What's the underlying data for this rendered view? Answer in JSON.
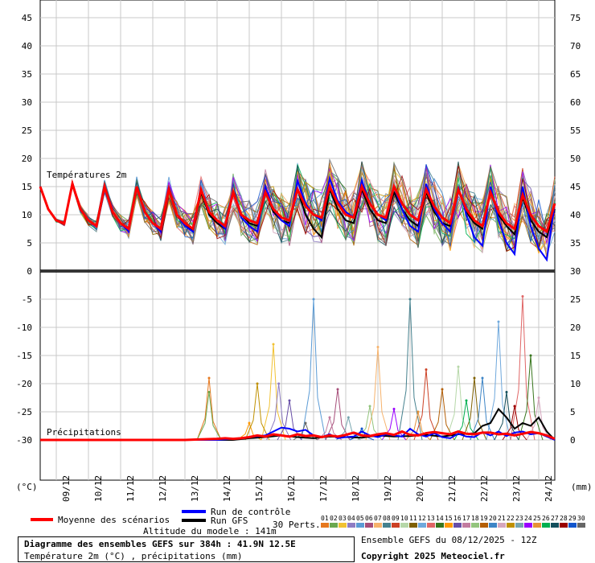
{
  "chart_data": {
    "type": "line",
    "top_panel": {
      "label": "Températures 2m",
      "left_ticks": [
        "45",
        "40",
        "35",
        "30",
        "25",
        "20",
        "15",
        "10",
        "5",
        "0"
      ],
      "right_ticks": [
        "75",
        "70",
        "65",
        "60",
        "55",
        "50",
        "45",
        "40",
        "35",
        "30"
      ],
      "ylim": [
        0,
        47.5
      ],
      "series": [
        {
          "name": "Moyenne des scénarios",
          "x": [
            0,
            6,
            12,
            18,
            24,
            30,
            36,
            42,
            48,
            54,
            60,
            66,
            72,
            78,
            84,
            90,
            96,
            102,
            108,
            114,
            120,
            126,
            132,
            138,
            144,
            150,
            156,
            162,
            168,
            174,
            180,
            186,
            192,
            198,
            204,
            210,
            216,
            222,
            228,
            234,
            240,
            246,
            252,
            258,
            264,
            270,
            276,
            282,
            288,
            294,
            300,
            306,
            312,
            318,
            324,
            330,
            336,
            342,
            348,
            354,
            360,
            366,
            372,
            378,
            384
          ],
          "values": [
            15,
            11,
            9,
            8.5,
            15.5,
            11,
            9,
            8,
            15,
            10.5,
            8.5,
            7.5,
            15,
            10.5,
            8.5,
            7.5,
            14.5,
            10,
            8.5,
            7.5,
            14.5,
            10.5,
            9,
            8,
            14,
            10,
            9,
            8.5,
            14,
            11,
            9.5,
            9,
            14.5,
            11.5,
            10,
            9.5,
            15,
            12,
            10,
            9.5,
            15,
            12,
            10,
            9.5,
            15,
            12,
            10,
            9,
            14.5,
            11.5,
            9.5,
            8.5,
            14.5,
            11,
            9,
            8,
            14,
            10.5,
            8.5,
            7.5,
            13.5,
            10,
            8,
            7,
            12
          ]
        },
        {
          "name": "Run de contrôle",
          "x": [
            0,
            6,
            12,
            18,
            24,
            30,
            36,
            42,
            48,
            54,
            60,
            66,
            72,
            78,
            84,
            90,
            96,
            102,
            108,
            114,
            120,
            126,
            132,
            138,
            144,
            150,
            156,
            162,
            168,
            174,
            180,
            186,
            192,
            198,
            204,
            210,
            216,
            222,
            228,
            234,
            240,
            246,
            252,
            258,
            264,
            270,
            276,
            282,
            288,
            294,
            300,
            306,
            312,
            318,
            324,
            330,
            336,
            342,
            348,
            354,
            360,
            366,
            372,
            378,
            384
          ],
          "values": [
            15,
            11,
            9,
            8.5,
            15.5,
            11,
            9,
            8,
            15,
            10.5,
            8.5,
            7,
            15,
            10.5,
            8.5,
            7,
            15,
            10,
            8,
            7,
            14.5,
            10.5,
            9,
            7.5,
            14,
            9.5,
            8,
            7,
            15,
            11,
            9,
            8,
            16,
            12,
            10,
            9,
            16.5,
            12.5,
            10.5,
            9.5,
            16,
            12,
            10,
            9,
            15,
            11,
            8,
            7,
            15.5,
            11,
            8.5,
            7,
            15,
            10,
            6,
            4.5,
            15,
            9,
            5,
            3,
            15,
            8,
            4,
            2,
            12
          ]
        },
        {
          "name": "Run GFS",
          "x": [
            0,
            6,
            12,
            18,
            24,
            30,
            36,
            42,
            48,
            54,
            60,
            66,
            72,
            78,
            84,
            90,
            96,
            102,
            108,
            114,
            120,
            126,
            132,
            138,
            144,
            150,
            156,
            162,
            168,
            174,
            180,
            186,
            192,
            198,
            204,
            210,
            216,
            222,
            228,
            234,
            240,
            246,
            252,
            258,
            264,
            270,
            276,
            282,
            288,
            294,
            300,
            306,
            312,
            318,
            324,
            330,
            336,
            342,
            348,
            354,
            360,
            366,
            372,
            378,
            384
          ],
          "values": [
            15,
            11,
            9,
            8.5,
            15.5,
            11,
            9,
            8,
            15,
            10.5,
            8.5,
            7.5,
            15,
            10.5,
            8.5,
            7.5,
            14.5,
            10,
            8.5,
            7,
            14,
            10,
            8.5,
            7.5,
            14,
            10,
            8.5,
            8,
            14,
            10.5,
            9,
            8.5,
            14.5,
            10,
            7.5,
            6,
            14.5,
            11,
            9,
            8.5,
            14.5,
            11,
            9,
            8.5,
            14,
            11,
            9,
            8,
            14,
            10.5,
            8.5,
            8,
            14.5,
            10.5,
            8.5,
            7.5,
            14,
            10,
            8,
            6.5,
            13,
            9,
            7,
            6,
            11
          ]
        }
      ]
    },
    "bottom_panel": {
      "label": "Précipitations",
      "left_ticks": [
        "0",
        "-5",
        "-10",
        "-15",
        "-20",
        "-25",
        "-30"
      ],
      "right_ticks": [
        "30",
        "25",
        "20",
        "15",
        "10",
        "5",
        "0"
      ],
      "ylim_mm": [
        0,
        30
      ],
      "series": [
        {
          "name": "Moyenne des scénarios",
          "x": [
            0,
            12,
            24,
            36,
            48,
            60,
            72,
            84,
            96,
            108,
            120,
            132,
            138,
            144,
            150,
            156,
            162,
            168,
            174,
            180,
            186,
            192,
            198,
            204,
            210,
            216,
            222,
            228,
            234,
            240,
            246,
            252,
            258,
            264,
            270,
            276,
            282,
            288,
            294,
            300,
            306,
            312,
            318,
            324,
            330,
            336,
            342,
            348,
            354,
            360,
            366,
            372,
            378,
            384
          ],
          "values": [
            0,
            0,
            0,
            0,
            0,
            0,
            0,
            0,
            0,
            0,
            0.1,
            0.2,
            0.3,
            0.2,
            0.3,
            0.5,
            0.8,
            0.6,
            1,
            0.8,
            0.6,
            1,
            0.7,
            0.8,
            0.5,
            0.8,
            0.6,
            0.9,
            1.3,
            0.8,
            0.7,
            1,
            1.2,
            0.9,
            1.5,
            0.9,
            0.8,
            1.2,
            1.4,
            1.2,
            1,
            1.5,
            1.1,
            1,
            1.3,
            1.3,
            1,
            1.1,
            0.8,
            1.1,
            1.4,
            1.2,
            0.8,
            0.2
          ]
        },
        {
          "name": "Run de contrôle",
          "x": [
            0,
            132,
            144,
            156,
            168,
            174,
            180,
            186,
            192,
            198,
            204,
            210,
            216,
            222,
            228,
            234,
            240,
            246,
            252,
            258,
            264,
            270,
            276,
            282,
            288,
            294,
            300,
            306,
            312,
            318,
            324,
            330,
            336,
            342,
            348,
            354,
            360,
            366,
            372,
            378,
            384
          ],
          "values": [
            0,
            0,
            0.2,
            0.5,
            0.8,
            1.5,
            2.2,
            2,
            1.5,
            1.8,
            0.8,
            0.5,
            1,
            0.3,
            0.5,
            0.6,
            1.5,
            0.8,
            0.5,
            1,
            0.8,
            0.6,
            2,
            1,
            0.6,
            1.2,
            0.5,
            0.3,
            1.1,
            0.6,
            0.5,
            1.4,
            0.8,
            1.5,
            0.7,
            1.3,
            1.5,
            1,
            1.2,
            0.6,
            0
          ]
        },
        {
          "name": "Run GFS",
          "x": [
            0,
            120,
            132,
            144,
            156,
            168,
            180,
            192,
            204,
            216,
            228,
            240,
            252,
            264,
            276,
            288,
            300,
            312,
            324,
            330,
            336,
            342,
            348,
            354,
            360,
            366,
            372,
            378,
            384
          ],
          "values": [
            0,
            0,
            0,
            0,
            0.3,
            0.5,
            0.8,
            0.5,
            0.3,
            0.6,
            0.5,
            0.4,
            0.8,
            0.6,
            0.7,
            0.9,
            0.6,
            1,
            1.2,
            2.5,
            3,
            5.5,
            4,
            2,
            3,
            2.5,
            4,
            1.5,
            0
          ]
        }
      ],
      "perturbation_peaks_mm": [
        {
          "x": 126,
          "value": 11
        },
        {
          "x": 126,
          "value": 8.5
        },
        {
          "x": 174,
          "value": 17
        },
        {
          "x": 178,
          "value": 10
        },
        {
          "x": 204,
          "value": 25
        },
        {
          "x": 222,
          "value": 9
        },
        {
          "x": 252,
          "value": 16.5
        },
        {
          "x": 276,
          "value": 25
        },
        {
          "x": 288,
          "value": 12.5
        },
        {
          "x": 312,
          "value": 13
        },
        {
          "x": 324,
          "value": 11
        },
        {
          "x": 342,
          "value": 21
        },
        {
          "x": 360,
          "value": 25.5
        },
        {
          "x": 366,
          "value": 15
        },
        {
          "x": 156,
          "value": 3
        },
        {
          "x": 186,
          "value": 7
        },
        {
          "x": 216,
          "value": 4
        },
        {
          "x": 246,
          "value": 6
        },
        {
          "x": 300,
          "value": 9
        },
        {
          "x": 330,
          "value": 11
        },
        {
          "x": 372,
          "value": 7.5
        },
        {
          "x": 162,
          "value": 10
        },
        {
          "x": 230,
          "value": 4
        },
        {
          "x": 264,
          "value": 5.5
        },
        {
          "x": 282,
          "value": 5
        },
        {
          "x": 318,
          "value": 7
        },
        {
          "x": 348,
          "value": 8.5
        },
        {
          "x": 354,
          "value": 6
        },
        {
          "x": 240,
          "value": 2
        },
        {
          "x": 198,
          "value": 3
        }
      ]
    },
    "x_dates": [
      "09/12",
      "10/12",
      "11/12",
      "12/12",
      "13/12",
      "14/12",
      "15/12",
      "16/12",
      "17/12",
      "18/12",
      "19/12",
      "20/12",
      "21/12",
      "22/12",
      "23/12",
      "24/12"
    ],
    "left_unit": "(°C)",
    "right_unit": "(mm)",
    "member_labels": [
      "01",
      "02",
      "03",
      "04",
      "05",
      "06",
      "07",
      "08",
      "09",
      "10",
      "11",
      "12",
      "13",
      "14",
      "15",
      "16",
      "17",
      "18",
      "19",
      "20",
      "21",
      "22",
      "23",
      "24",
      "25",
      "26",
      "27",
      "28",
      "29",
      "30"
    ],
    "member_colors": [
      "#e6781e",
      "#6aa84f",
      "#f1c232",
      "#8e7cc3",
      "#5b9bd5",
      "#a64d79",
      "#f6b26b",
      "#45818e",
      "#cc4125",
      "#b6d7a8",
      "#7f6000",
      "#6fa8dc",
      "#e06666",
      "#38761d",
      "#ff9900",
      "#674ea7",
      "#c27ba0",
      "#93c47d",
      "#b45f06",
      "#3d85c6",
      "#d5a6bd",
      "#bf9000",
      "#76a5af",
      "#9900ff",
      "#e69138",
      "#00b050",
      "#134f5c",
      "#990000",
      "#1155cc",
      "#666666"
    ],
    "colors": {
      "mean": "#ff0000",
      "control": "#0000ff",
      "gfs": "#000000",
      "grid": "#c8c8c8"
    }
  },
  "legend": {
    "mean_label": "Moyenne des scénarios",
    "control_label": "Run de contrôle",
    "gfs_label": "Run GFS",
    "perts_label": "30 Perts."
  },
  "footer": {
    "altitude": "Altitude du modele : 141m",
    "title": "Diagramme des ensembles GEFS sur 384h : 41.9N 12.5E",
    "subtitle": "Température 2m (°C) , précipitations (mm)",
    "run": "Ensemble GEFS du 08/12/2025 - 12Z",
    "copyright": "Copyright 2025 Meteociel.fr"
  }
}
